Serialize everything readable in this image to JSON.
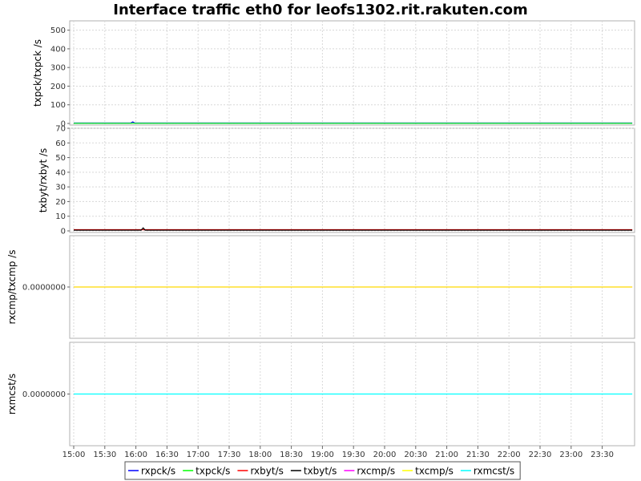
{
  "chart_data": {
    "type": "line",
    "title": "Interface traffic eth0 for leofs1302.rit.rakuten.com",
    "x_tick_labels": [
      "15:00",
      "15:30",
      "16:00",
      "16:30",
      "17:00",
      "17:30",
      "18:00",
      "18:30",
      "19:00",
      "19:30",
      "20:00",
      "20:30",
      "21:00",
      "21:30",
      "22:00",
      "22:30",
      "23:00",
      "23:30"
    ],
    "x_range": [
      "15:00",
      "00:00"
    ],
    "grid": true,
    "legend_placement": "bottom",
    "legend": [
      {
        "name": "rxpck/s",
        "color": "#0000ff"
      },
      {
        "name": "txpck/s",
        "color": "#00ff00"
      },
      {
        "name": "rxbyt/s",
        "color": "#ff0000"
      },
      {
        "name": "txbyt/s",
        "color": "#000000"
      },
      {
        "name": "rxcmp/s",
        "color": "#ff00ff"
      },
      {
        "name": "txcmp/s",
        "color": "#ffff00"
      },
      {
        "name": "rxmcst/s",
        "color": "#00ffff"
      }
    ],
    "panels": [
      {
        "ylabel": "txpck/txpck /s",
        "ylim": [
          0,
          550
        ],
        "y_ticks": [
          0,
          100,
          200,
          300,
          400,
          500
        ],
        "y_tick_labels": [
          "0",
          "100",
          "200",
          "300",
          "400",
          "500"
        ],
        "series": [
          {
            "name": "rxpck/s",
            "color": "#0000ff",
            "points": [
              [
                "15:00",
                2
              ],
              [
                "15:55",
                2
              ],
              [
                "15:57",
                8
              ],
              [
                "15:59",
                2
              ],
              [
                "23:59",
                2
              ]
            ]
          },
          {
            "name": "txpck/s",
            "color": "#00ff00",
            "points": [
              [
                "15:00",
                1
              ],
              [
                "23:59",
                1
              ]
            ]
          }
        ]
      },
      {
        "ylabel": "txbyt/rxbyt /s",
        "ylim": [
          0,
          70
        ],
        "y_ticks": [
          0,
          10,
          20,
          30,
          40,
          50,
          60,
          70
        ],
        "y_tick_labels": [
          "0",
          "10",
          "20",
          "30",
          "40",
          "50",
          "60",
          "70"
        ],
        "series": [
          {
            "name": "rxbyt/s",
            "color": "#ff0000",
            "points": [
              [
                "15:00",
                0.8
              ],
              [
                "23:59",
                0.8
              ]
            ]
          },
          {
            "name": "txbyt/s",
            "color": "#000000",
            "points": [
              [
                "15:00",
                0.5
              ],
              [
                "16:05",
                0.5
              ],
              [
                "16:07",
                2
              ],
              [
                "16:09",
                0.5
              ],
              [
                "23:59",
                0.5
              ]
            ]
          }
        ]
      },
      {
        "ylabel": "rxcmp/txcmp /s",
        "ylim": [
          -1,
          1
        ],
        "y_ticks": [
          0
        ],
        "y_tick_labels": [
          "0.0000000"
        ],
        "series": [
          {
            "name": "rxcmp/s",
            "color": "#ff00ff",
            "points": [
              [
                "15:00",
                0
              ],
              [
                "23:59",
                0
              ]
            ]
          },
          {
            "name": "txcmp/s",
            "color": "#ffff00",
            "points": [
              [
                "15:00",
                0
              ],
              [
                "23:59",
                0
              ]
            ]
          }
        ]
      },
      {
        "ylabel": "rxmcst/s",
        "ylim": [
          -1,
          1
        ],
        "y_ticks": [
          0
        ],
        "y_tick_labels": [
          "0.0000000"
        ],
        "series": [
          {
            "name": "rxmcst/s",
            "color": "#00ffff",
            "points": [
              [
                "15:00",
                0
              ],
              [
                "23:59",
                0
              ]
            ]
          }
        ]
      }
    ]
  }
}
